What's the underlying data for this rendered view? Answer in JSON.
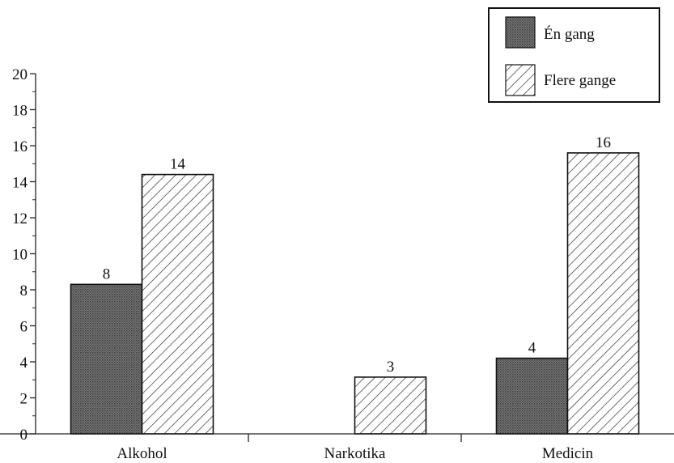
{
  "chart_data": {
    "type": "bar",
    "categories": [
      "Alkohol",
      "Narkotika",
      "Medicin"
    ],
    "series": [
      {
        "name": "Én gang",
        "values": [
          8,
          0,
          4
        ],
        "labels": [
          "8",
          "",
          "4"
        ],
        "fill": "solid-dark",
        "color": "#6a6a6a"
      },
      {
        "name": "Flere gange",
        "values": [
          14,
          3,
          16
        ],
        "labels": [
          "14",
          "3",
          "16"
        ],
        "fill": "hatch",
        "color": "#333333"
      }
    ],
    "y_ticks": [
      "0",
      "2",
      "4",
      "6",
      "8",
      "10",
      "12",
      "14",
      "16",
      "18",
      "20"
    ],
    "ylim": [
      0,
      20
    ],
    "grid": false,
    "legend_position": "top-right"
  }
}
